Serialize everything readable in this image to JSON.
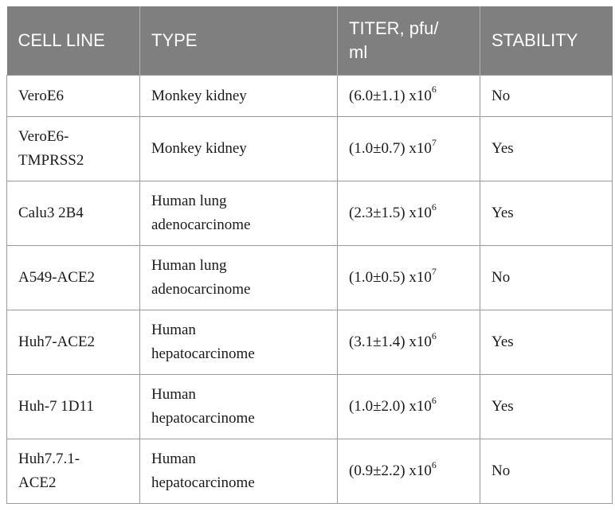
{
  "headers": {
    "cell_line": "CELL LINE",
    "type": "TYPE",
    "titer_line1": "TITER, pfu/",
    "titer_line2": "ml",
    "stability": "STABILITY"
  },
  "rows": [
    {
      "cell_line": [
        "VeroE6"
      ],
      "type": [
        "Monkey kidney"
      ],
      "titer_base": "(6.0±1.1) x10",
      "titer_exp": "6",
      "stability": "No"
    },
    {
      "cell_line": [
        "VeroE6-",
        "TMPRSS2"
      ],
      "type": [
        "Monkey kidney"
      ],
      "titer_base": "(1.0±0.7) x10",
      "titer_exp": "7",
      "stability": "Yes"
    },
    {
      "cell_line": [
        "Calu3 2B4"
      ],
      "type": [
        "Human lung",
        "adenocarcinome"
      ],
      "titer_base": "(2.3±1.5) x10",
      "titer_exp": "6",
      "stability": "Yes"
    },
    {
      "cell_line": [
        "A549-ACE2"
      ],
      "type": [
        "Human lung",
        "adenocarcinome"
      ],
      "titer_base": "(1.0±0.5) x10",
      "titer_exp": "7",
      "stability": "No"
    },
    {
      "cell_line": [
        "Huh7-ACE2"
      ],
      "type": [
        "Human",
        "hepatocarcinome"
      ],
      "titer_base": "(3.1±1.4) x10",
      "titer_exp": "6",
      "stability": "Yes"
    },
    {
      "cell_line": [
        "Huh-7 1D11"
      ],
      "type": [
        "Human",
        "hepatocarcinome"
      ],
      "titer_base": "(1.0±2.0) x10",
      "titer_exp": "6",
      "stability": "Yes"
    },
    {
      "cell_line": [
        "Huh7.7.1-",
        "ACE2"
      ],
      "type": [
        "Human",
        "hepatocarcinome"
      ],
      "titer_base": "(0.9±2.2) x10",
      "titer_exp": "6",
      "stability": "No"
    }
  ]
}
